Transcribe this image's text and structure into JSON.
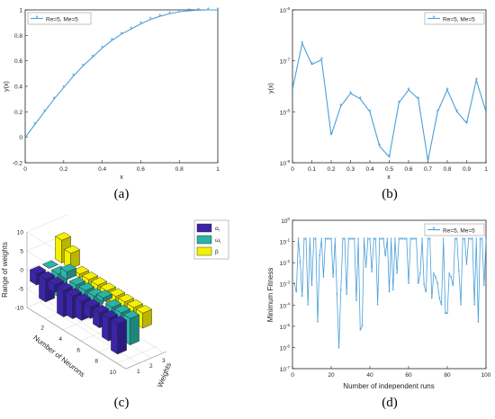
{
  "captions": {
    "a": "(a)",
    "b": "(b)",
    "c": "(c)",
    "d": "(d)"
  },
  "colors": {
    "series": "#4a9fd8",
    "bar1": "#3b24a8",
    "bar2": "#2bb3a6",
    "bar3": "#f5f000"
  },
  "chart_data": [
    {
      "id": "a",
      "type": "line",
      "xlabel": "x",
      "ylabel": "y(x)",
      "xlim": [
        0,
        1
      ],
      "ylim": [
        -0.2,
        1
      ],
      "xticks": [
        "0",
        "0.2",
        "0.4",
        "0.6",
        "0.8",
        "1"
      ],
      "yticks": [
        "-0.2",
        "0",
        "0.2",
        "0.4",
        "0.6",
        "0.8",
        "1"
      ],
      "legend": {
        "location": "top-left",
        "label": "Re=5, Me=5"
      },
      "series": [
        {
          "name": "Re=5, Me=5",
          "x": [
            0,
            0.05,
            0.1,
            0.15,
            0.2,
            0.25,
            0.3,
            0.35,
            0.4,
            0.45,
            0.5,
            0.55,
            0.6,
            0.65,
            0.7,
            0.75,
            0.8,
            0.85,
            0.9,
            0.95,
            1
          ],
          "y": [
            0,
            0.1,
            0.2,
            0.3,
            0.39,
            0.48,
            0.56,
            0.63,
            0.7,
            0.76,
            0.81,
            0.85,
            0.89,
            0.925,
            0.95,
            0.97,
            0.985,
            0.993,
            0.998,
            1.0,
            1.0
          ]
        }
      ]
    },
    {
      "id": "b",
      "type": "line",
      "yscale": "log",
      "xlabel": "x",
      "ylabel": "y(x)",
      "xlim": [
        0,
        1
      ],
      "ylim": [
        1e-09,
        1e-06
      ],
      "xticks": [
        "0",
        "0.1",
        "0.2",
        "0.3",
        "0.4",
        "0.5",
        "0.6",
        "0.7",
        "0.8",
        "0.9",
        "1"
      ],
      "yticks": [
        {
          "base": "10",
          "exp": "-9"
        },
        {
          "base": "10",
          "exp": "-8"
        },
        {
          "base": "10",
          "exp": "-7"
        },
        {
          "base": "10",
          "exp": "-6"
        }
      ],
      "legend": {
        "location": "top-right",
        "label": "Re=5, Me=5"
      },
      "series": [
        {
          "name": "Re=5, Me=5",
          "x": [
            0,
            0.05,
            0.1,
            0.15,
            0.2,
            0.25,
            0.3,
            0.35,
            0.4,
            0.45,
            0.5,
            0.55,
            0.6,
            0.65,
            0.7,
            0.75,
            0.8,
            0.85,
            0.9,
            0.95,
            1
          ],
          "y": [
            2.8e-08,
            2.2e-07,
            8.5e-08,
            1.05e-07,
            3.5e-09,
            1.3e-08,
            2.3e-08,
            1.8e-08,
            1e-08,
            2.1e-09,
            1.3e-09,
            1.5e-08,
            2.7e-08,
            1.8e-08,
            1.1e-09,
            1e-08,
            2.7e-08,
            1e-08,
            6e-09,
            4.2e-08,
            1e-08
          ]
        }
      ]
    },
    {
      "id": "c",
      "type": "bar3d",
      "xlabel": "Number of Neurons",
      "ylabel": "Weights",
      "zlabel": "Range of weights",
      "zticks": [
        "10",
        "5",
        "0",
        "-5",
        "-10"
      ],
      "zlim": [
        -10,
        10
      ],
      "xticks": [
        "2",
        "4",
        "6",
        "8",
        "10"
      ],
      "yticks": [
        "1",
        "2",
        "3"
      ],
      "legend": {
        "location": "right",
        "entries": [
          {
            "name": "α",
            "sub": "i"
          },
          {
            "name": "ω",
            "sub": "i"
          },
          {
            "name": "β",
            "sub": ""
          }
        ]
      },
      "series": [
        {
          "name": "αi",
          "values": [
            -3,
            -6,
            -2,
            -7,
            -6,
            -5,
            -3,
            -4,
            -6,
            -8
          ]
        },
        {
          "name": "ωi",
          "values": [
            0,
            -6,
            2,
            -2,
            -3,
            -3,
            1,
            -4,
            -7,
            -7
          ]
        },
        {
          "name": "β",
          "values": [
            6,
            4,
            -1,
            -2,
            -4,
            -3,
            -2,
            -6,
            -3,
            -4
          ]
        }
      ]
    },
    {
      "id": "d",
      "type": "line",
      "yscale": "log",
      "xlabel": "Number of independent runs",
      "ylabel": "Minimum Fitness",
      "xlim": [
        0,
        100
      ],
      "ylim": [
        1e-07,
        1
      ],
      "xticks": [
        "0",
        "20",
        "40",
        "60",
        "80",
        "100"
      ],
      "yticks": [
        {
          "base": "10",
          "exp": "-7"
        },
        {
          "base": "10",
          "exp": "-6"
        },
        {
          "base": "10",
          "exp": "-5"
        },
        {
          "base": "10",
          "exp": "-4"
        },
        {
          "base": "10",
          "exp": "-3"
        },
        {
          "base": "10",
          "exp": "-2"
        },
        {
          "base": "10",
          "exp": "-1"
        },
        {
          "base": "10",
          "exp": "0"
        }
      ],
      "legend": {
        "location": "top-right",
        "label": "Re=5, Me=5"
      },
      "series": [
        {
          "name": "Re=5, Me=5",
          "x": [
            1,
            2,
            3,
            4,
            5,
            6,
            7,
            8,
            9,
            10,
            11,
            12,
            13,
            14,
            15,
            16,
            17,
            18,
            19,
            20,
            21,
            22,
            23,
            24,
            25,
            26,
            27,
            28,
            29,
            30,
            31,
            32,
            33,
            34,
            35,
            36,
            37,
            38,
            39,
            40,
            41,
            42,
            43,
            44,
            45,
            46,
            47,
            48,
            49,
            50,
            51,
            52,
            53,
            54,
            55,
            56,
            57,
            58,
            59,
            60,
            61,
            62,
            63,
            64,
            65,
            66,
            67,
            68,
            69,
            70,
            71,
            72,
            73,
            74,
            75,
            76,
            77,
            78,
            79,
            80,
            81,
            82,
            83,
            84,
            85,
            86,
            87,
            88,
            89,
            90,
            91,
            92,
            93,
            94,
            95,
            96,
            97,
            98,
            99,
            100
          ],
          "y": [
            0.001,
            0.0004,
            0.13,
            0.01,
            0.00025,
            0.13,
            0.13,
            0.0001,
            0.13,
            0.0008,
            0.13,
            0.13,
            1.5e-05,
            0.02,
            0.13,
            0.002,
            0.13,
            0.13,
            0.13,
            0.13,
            0.002,
            0.13,
            0.0003,
            9e-07,
            0.0005,
            0.13,
            0.13,
            0.0003,
            0.13,
            0.13,
            0.13,
            0.13,
            0.00015,
            0.13,
            6.5e-06,
            1e-05,
            0.13,
            0.006,
            0.13,
            0.13,
            0.0035,
            0.13,
            0.13,
            0.0001,
            0.13,
            0.13,
            0.13,
            0.02,
            0.13,
            0.0004,
            0.13,
            0.0005,
            0.13,
            0.003,
            0.13,
            0.13,
            0.13,
            0.13,
            0.13,
            0.001,
            0.13,
            0.13,
            0.13,
            0.13,
            0.001,
            0.003,
            0.13,
            0.0009,
            0.0004,
            0.13,
            0.13,
            0.0002,
            0.003,
            0.002,
            0.001,
            0.0002,
            0.0001,
            0.13,
            4e-05,
            4e-05,
            0.003,
            0.002,
            0.0008,
            0.13,
            0.13,
            0.004,
            0.0001,
            0.13,
            0.13,
            0.008,
            0.13,
            0.13,
            0.13,
            0.0001,
            0.13,
            1.5e-05,
            0.13,
            0.13,
            0.0008,
            0.13
          ]
        }
      ]
    }
  ]
}
